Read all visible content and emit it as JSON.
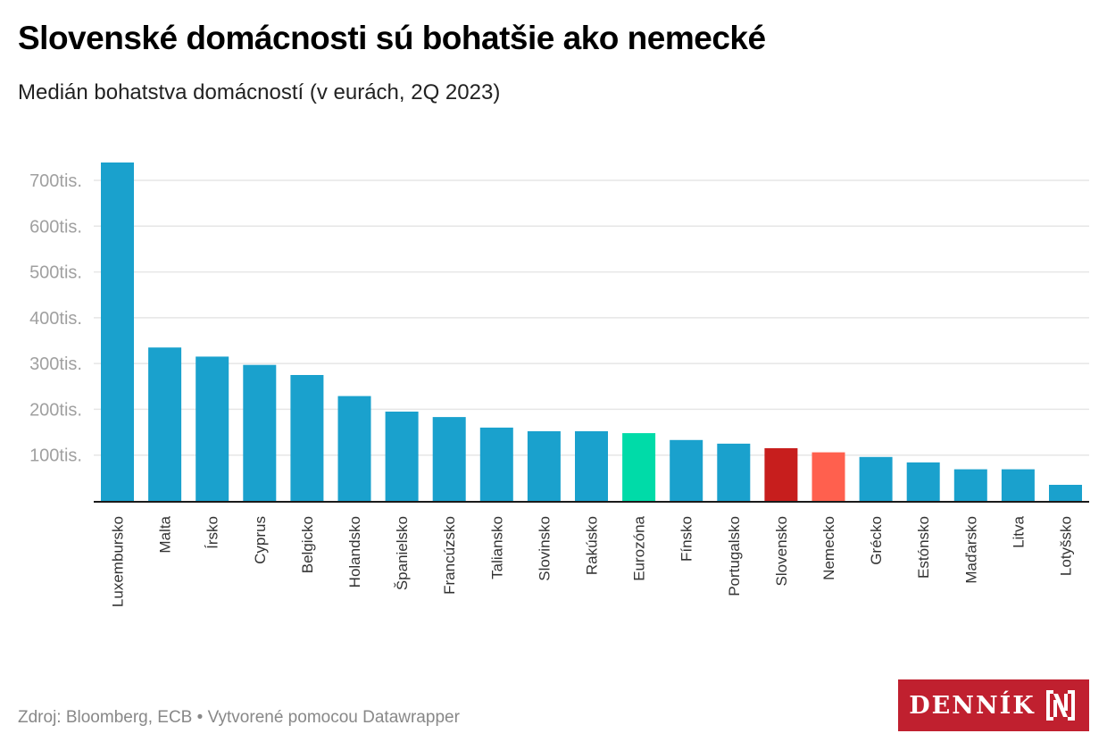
{
  "header": {
    "title": "Slovenské domácnosti sú bohatšie ako nemecké",
    "subtitle": "Medián bohatstva domácností (v eurách, 2Q 2023)"
  },
  "footer": {
    "source": "Zdroj: Bloomberg, ECB • Vytvorené pomocou Datawrapper"
  },
  "logo": {
    "text": "DENNÍK",
    "icon": "n-bracket-icon"
  },
  "colors": {
    "default_bar": "#1aa1cd",
    "eurozone_bar": "#00dba8",
    "slovakia_bar": "#c71e1d",
    "germany_bar": "#ff604e",
    "grid": "#e6e6e6",
    "axis": "#1a1a1a",
    "tick_label": "#a0a0a0",
    "category_label": "#333333",
    "logo_bg": "#c0202f"
  },
  "chart_data": {
    "type": "bar",
    "title": "Slovenské domácnosti sú bohatšie ako nemecké",
    "subtitle": "Medián bohatstva domácností (v eurách, 2Q 2023)",
    "xlabel": "",
    "ylabel": "",
    "unit": "tis. EUR",
    "ylim": [
      0,
      750
    ],
    "grid": true,
    "legend": "none",
    "yticks": [
      100,
      200,
      300,
      400,
      500,
      600,
      700
    ],
    "ytick_labels": [
      "100tis.",
      "200tis.",
      "300tis.",
      "400tis.",
      "500tis.",
      "600tis.",
      "700tis."
    ],
    "categories": [
      "Luxembursko",
      "Malta",
      "Írsko",
      "Cyprus",
      "Belgicko",
      "Holandsko",
      "Španielsko",
      "Francúzsko",
      "Taliansko",
      "Slovinsko",
      "Rakúsko",
      "Eurozóna",
      "Fínsko",
      "Portugalsko",
      "Slovensko",
      "Nemecko",
      "Grécko",
      "Estónsko",
      "Maďarsko",
      "Litva",
      "Lotyšsko"
    ],
    "values": [
      739,
      335,
      315,
      297,
      275,
      229,
      195,
      183,
      160,
      152,
      152,
      148,
      133,
      125,
      115,
      106,
      96,
      84,
      69,
      69,
      35
    ],
    "highlights": {
      "Eurozóna": "eurozone_bar",
      "Slovensko": "slovakia_bar",
      "Nemecko": "germany_bar"
    }
  }
}
